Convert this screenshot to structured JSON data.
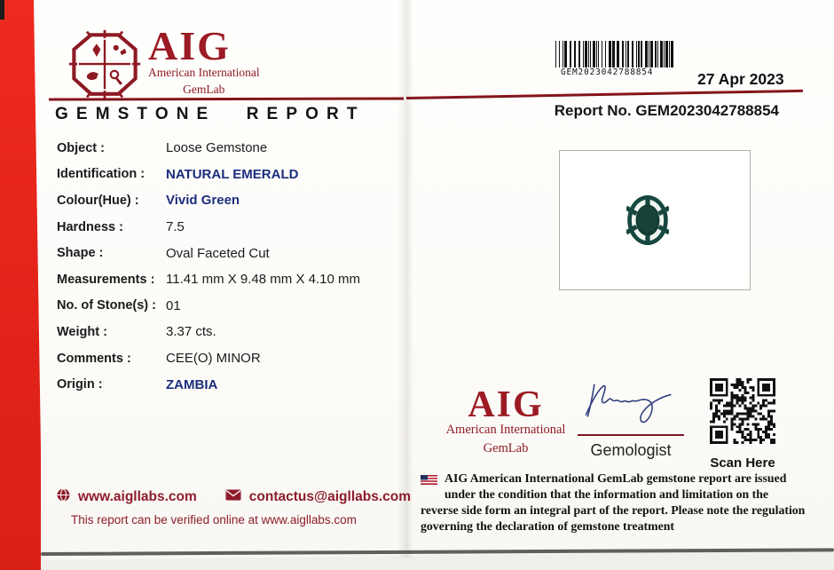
{
  "brand": {
    "acronym": "AIG",
    "line1": "American International",
    "line2": "GemLab"
  },
  "title": "GEMSTONE REPORT",
  "header": {
    "barcode_text": "GEM2023042788854",
    "date": "27 Apr 2023",
    "report_no": "Report No. GEM2023042788854"
  },
  "fields": [
    {
      "label": "Object :",
      "value": "Loose Gemstone"
    },
    {
      "label": "Identification :",
      "value": "NATURAL EMERALD"
    },
    {
      "label": "Colour(Hue) :",
      "value": "Vivid Green"
    },
    {
      "label": "Hardness :",
      "value": "7.5"
    },
    {
      "label": "Shape :",
      "value": "Oval Faceted Cut"
    },
    {
      "label": "Measurements :",
      "value": "11.41 mm X 9.48 mm X 4.10 mm"
    },
    {
      "label": "No. of Stone(s) :",
      "value": "01"
    },
    {
      "label": "Weight :",
      "value": "3.37 cts."
    },
    {
      "label": "Comments :",
      "value": "CEE(O) MINOR"
    },
    {
      "label": "Origin :",
      "value": "ZAMBIA"
    }
  ],
  "signature": {
    "role": "Gemologist"
  },
  "qr": {
    "caption": "Scan Here"
  },
  "disclaimer": "AIG American International GemLab gemstone report are issued under the condition that the information and limitation on the reverse side form an integral part of the report. Please note the regulation governing the declaration of gemstone treatment",
  "footer": {
    "website": "www.aigllabs.com",
    "email": "contactus@aigllabs.com",
    "verify": "This report can be verified online at www.aigllabs.com"
  },
  "colors": {
    "backing_red": "#e32319",
    "logo_maroon": "#9c1b24",
    "value_navy": "#1c2e7d",
    "gem_green": "#16483e"
  }
}
